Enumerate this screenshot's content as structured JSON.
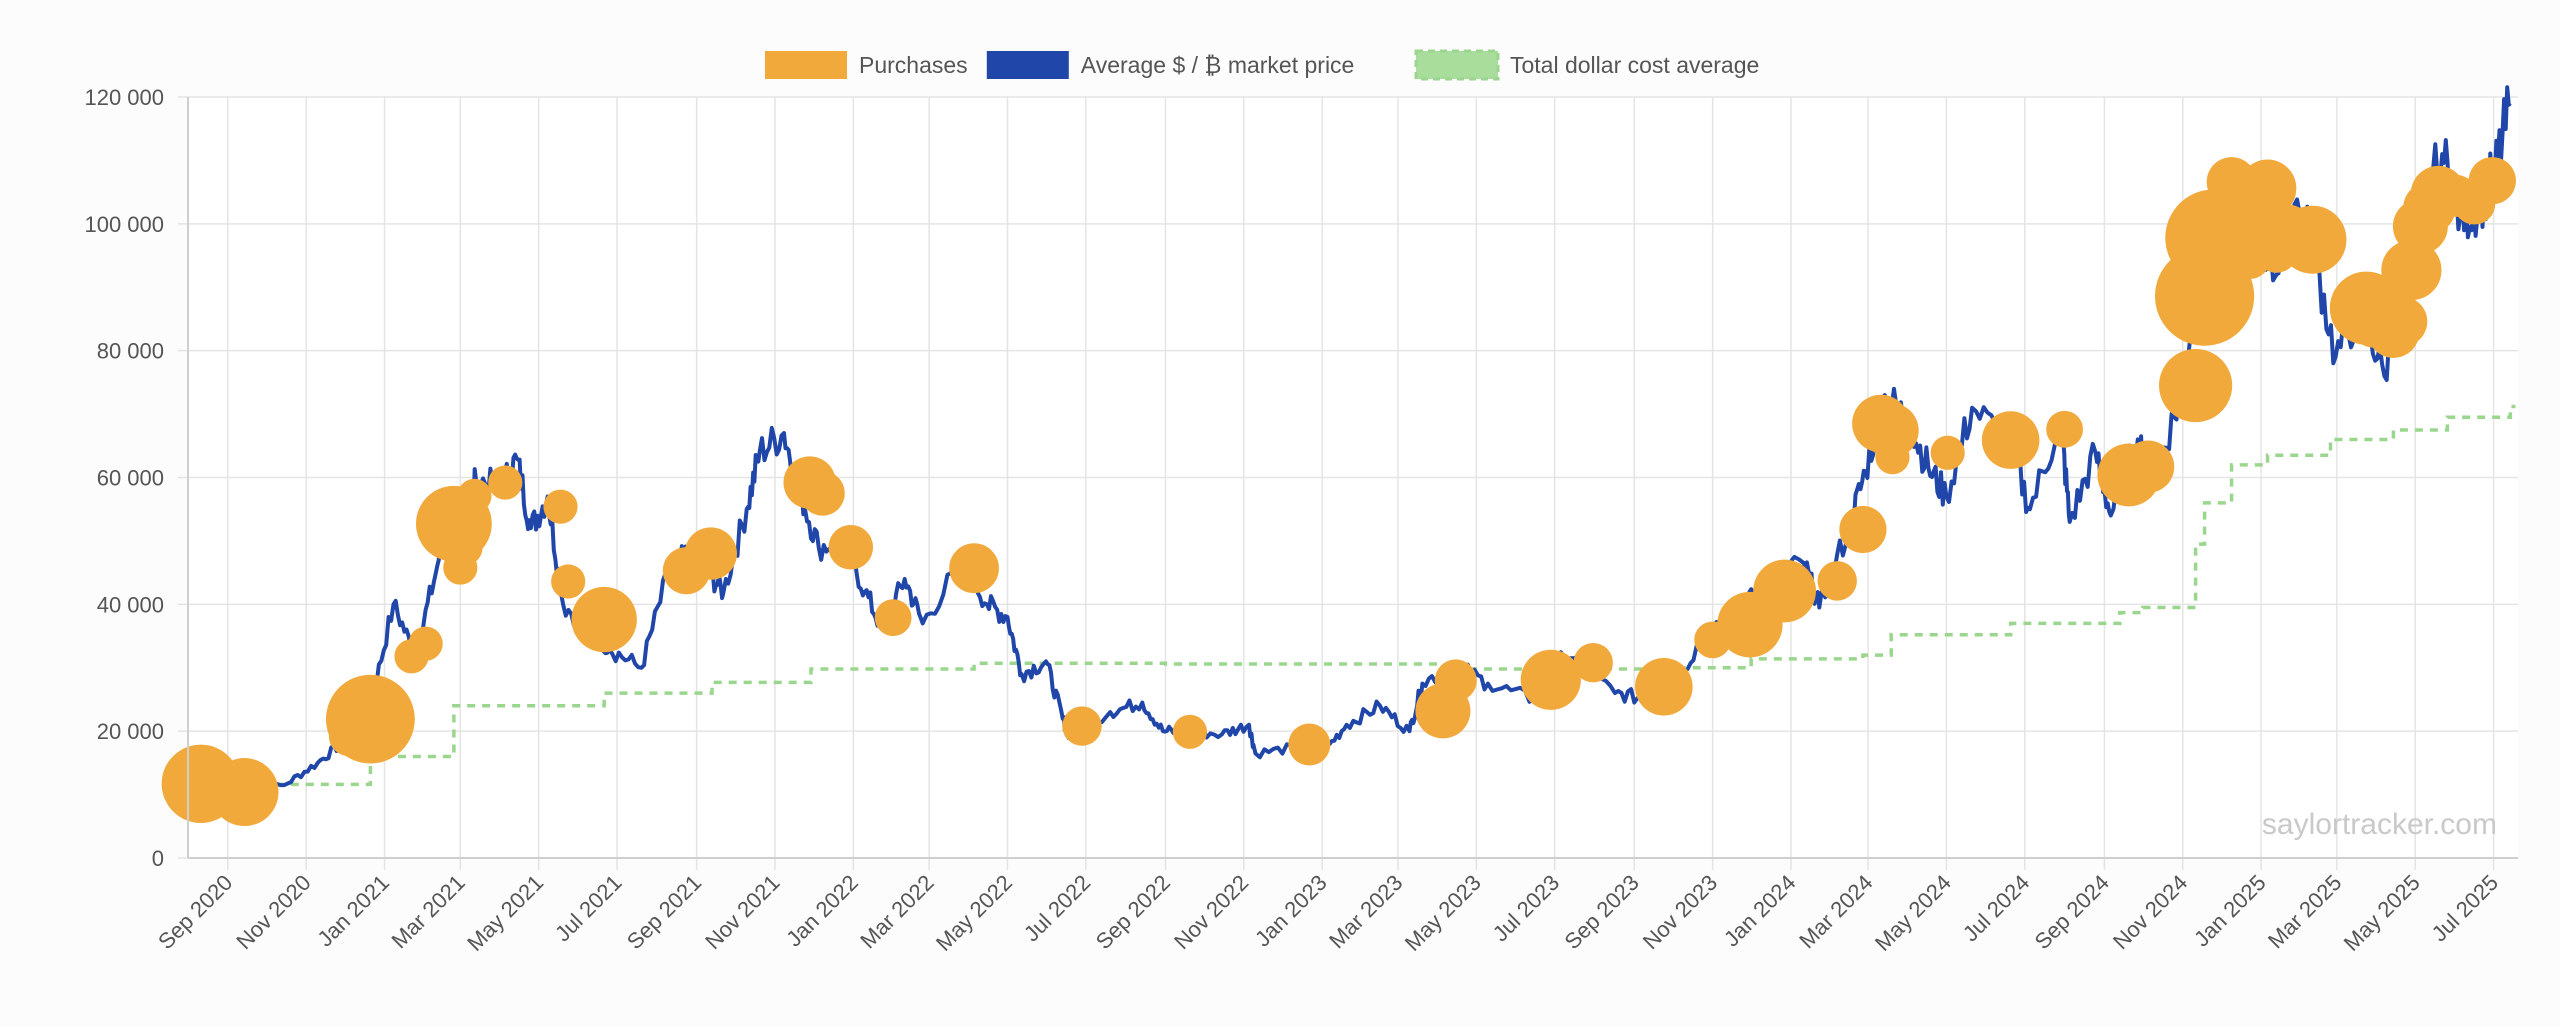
{
  "chart_data": {
    "type": "line",
    "title": "",
    "xlabel": "",
    "ylabel": "",
    "x_range": [
      "2020-08-01",
      "2025-07-20"
    ],
    "ylim": [
      0,
      120000
    ],
    "y_ticks": [
      0,
      20000,
      40000,
      60000,
      80000,
      100000,
      120000
    ],
    "y_tick_labels": [
      "0",
      "20 000",
      "40 000",
      "60 000",
      "80 000",
      "100 000",
      "120 000"
    ],
    "x_ticks": [
      "2020-09-01",
      "2020-11-01",
      "2021-01-01",
      "2021-03-01",
      "2021-05-01",
      "2021-07-01",
      "2021-09-01",
      "2021-11-01",
      "2022-01-01",
      "2022-03-01",
      "2022-05-01",
      "2022-07-01",
      "2022-09-01",
      "2022-11-01",
      "2023-01-01",
      "2023-03-01",
      "2023-05-01",
      "2023-07-01",
      "2023-09-01",
      "2023-11-01",
      "2024-01-01",
      "2024-03-01",
      "2024-05-01",
      "2024-07-01",
      "2024-09-01",
      "2024-11-01",
      "2025-01-01",
      "2025-03-01",
      "2025-05-01",
      "2025-07-01"
    ],
    "x_tick_labels": [
      "Sep 2020",
      "Nov 2020",
      "Jan 2021",
      "Mar 2021",
      "May 2021",
      "Jul 2021",
      "Sep 2021",
      "Nov 2021",
      "Jan 2022",
      "Mar 2022",
      "May 2022",
      "Jul 2022",
      "Sep 2022",
      "Nov 2022",
      "Jan 2023",
      "Mar 2023",
      "May 2023",
      "Jul 2023",
      "Sep 2023",
      "Nov 2023",
      "Jan 2024",
      "Mar 2024",
      "May 2024",
      "Jul 2024",
      "Sep 2024",
      "Nov 2024",
      "Jan 2025",
      "Mar 2025",
      "May 2025",
      "Jul 2025"
    ],
    "grid": true,
    "legend_position": "top-center",
    "legend": [
      {
        "label": "Purchases",
        "color": "#f2a93b",
        "style": "filled-box"
      },
      {
        "label": "Average $ / ₿ market price",
        "color": "#1f46a8",
        "style": "filled-box"
      },
      {
        "label": "Total dollar cost average",
        "color": "#9bd68e",
        "style": "dashed"
      }
    ],
    "watermark": "saylortracker.com",
    "series": [
      {
        "name": "Average $ / ₿ market price",
        "type": "line",
        "color": "#1f46a8",
        "points": [
          [
            "2020-09-15",
            10500
          ],
          [
            "2020-10-15",
            11500
          ],
          [
            "2020-11-10",
            15000
          ],
          [
            "2020-12-01",
            18500
          ],
          [
            "2020-12-20",
            23000
          ],
          [
            "2021-01-08",
            40000
          ],
          [
            "2021-01-25",
            32000
          ],
          [
            "2021-02-10",
            45000
          ],
          [
            "2021-02-21",
            56000
          ],
          [
            "2021-03-05",
            49000
          ],
          [
            "2021-03-13",
            60000
          ],
          [
            "2021-04-01",
            58000
          ],
          [
            "2021-04-14",
            63000
          ],
          [
            "2021-04-25",
            52000
          ],
          [
            "2021-05-08",
            57000
          ],
          [
            "2021-05-20",
            40000
          ],
          [
            "2021-06-10",
            36000
          ],
          [
            "2021-06-25",
            33000
          ],
          [
            "2021-07-20",
            30000
          ],
          [
            "2021-08-10",
            45000
          ],
          [
            "2021-08-25",
            48000
          ],
          [
            "2021-09-10",
            45000
          ],
          [
            "2021-09-22",
            42000
          ],
          [
            "2021-10-10",
            55000
          ],
          [
            "2021-10-20",
            64000
          ],
          [
            "2021-11-08",
            67000
          ],
          [
            "2021-11-20",
            58000
          ],
          [
            "2021-12-05",
            49000
          ],
          [
            "2021-12-25",
            50000
          ],
          [
            "2022-01-10",
            42000
          ],
          [
            "2022-01-24",
            36000
          ],
          [
            "2022-02-10",
            44000
          ],
          [
            "2022-02-24",
            37000
          ],
          [
            "2022-03-28",
            47000
          ],
          [
            "2022-04-15",
            40000
          ],
          [
            "2022-05-01",
            38000
          ],
          [
            "2022-05-12",
            29000
          ],
          [
            "2022-05-31",
            31000
          ],
          [
            "2022-06-13",
            22000
          ],
          [
            "2022-06-18",
            19000
          ],
          [
            "2022-07-20",
            23000
          ],
          [
            "2022-08-14",
            24500
          ],
          [
            "2022-08-30",
            20000
          ],
          [
            "2022-09-15",
            20000
          ],
          [
            "2022-10-15",
            19500
          ],
          [
            "2022-11-05",
            21000
          ],
          [
            "2022-11-10",
            16500
          ],
          [
            "2022-12-15",
            17500
          ],
          [
            "2023-01-01",
            16500
          ],
          [
            "2023-01-20",
            21000
          ],
          [
            "2023-02-15",
            24000
          ],
          [
            "2023-03-10",
            20000
          ],
          [
            "2023-03-20",
            27500
          ],
          [
            "2023-04-14",
            30500
          ],
          [
            "2023-05-10",
            27500
          ],
          [
            "2023-06-15",
            25000
          ],
          [
            "2023-06-25",
            30500
          ],
          [
            "2023-07-13",
            31500
          ],
          [
            "2023-08-17",
            26000
          ],
          [
            "2023-09-11",
            25000
          ],
          [
            "2023-10-01",
            27500
          ],
          [
            "2023-10-24",
            34500
          ],
          [
            "2023-11-15",
            37000
          ],
          [
            "2023-12-05",
            43000
          ],
          [
            "2024-01-11",
            46500
          ],
          [
            "2024-01-23",
            39500
          ],
          [
            "2024-02-15",
            52000
          ],
          [
            "2024-02-28",
            61000
          ],
          [
            "2024-03-14",
            73000
          ],
          [
            "2024-04-01",
            69000
          ],
          [
            "2024-04-17",
            61500
          ],
          [
            "2024-05-01",
            57000
          ],
          [
            "2024-05-21",
            71000
          ],
          [
            "2024-06-20",
            65000
          ],
          [
            "2024-07-05",
            55000
          ],
          [
            "2024-07-29",
            69000
          ],
          [
            "2024-08-05",
            53000
          ],
          [
            "2024-08-25",
            64000
          ],
          [
            "2024-09-06",
            54000
          ],
          [
            "2024-09-27",
            66000
          ],
          [
            "2024-10-10",
            60000
          ],
          [
            "2024-10-29",
            72000
          ],
          [
            "2024-11-12",
            89000
          ],
          [
            "2024-11-22",
            99000
          ],
          [
            "2024-12-17",
            106000
          ],
          [
            "2025-01-13",
            92000
          ],
          [
            "2025-01-21",
            106000
          ],
          [
            "2025-02-10",
            97000
          ],
          [
            "2025-02-28",
            79000
          ],
          [
            "2025-03-20",
            87000
          ],
          [
            "2025-04-07",
            76000
          ],
          [
            "2025-04-25",
            95000
          ],
          [
            "2025-05-22",
            111000
          ],
          [
            "2025-06-05",
            101000
          ],
          [
            "2025-06-20",
            103000
          ],
          [
            "2025-07-02",
            108000
          ],
          [
            "2025-07-14",
            119000
          ]
        ]
      },
      {
        "name": "Total dollar cost average",
        "type": "step-line",
        "color": "#9bd68e",
        "points": [
          [
            "2020-09-15",
            11600
          ],
          [
            "2020-12-21",
            16000
          ],
          [
            "2021-02-24",
            24000
          ],
          [
            "2021-06-21",
            26000
          ],
          [
            "2021-09-13",
            27700
          ],
          [
            "2021-11-29",
            29800
          ],
          [
            "2022-04-05",
            30700
          ],
          [
            "2022-09-01",
            30600
          ],
          [
            "2023-04-05",
            29800
          ],
          [
            "2023-09-25",
            30000
          ],
          [
            "2023-12-01",
            31400
          ],
          [
            "2024-02-26",
            32000
          ],
          [
            "2024-03-19",
            35200
          ],
          [
            "2024-06-20",
            37000
          ],
          [
            "2024-09-13",
            38700
          ],
          [
            "2024-10-01",
            39500
          ],
          [
            "2024-11-11",
            49500
          ],
          [
            "2024-11-18",
            56000
          ],
          [
            "2024-12-09",
            62000
          ],
          [
            "2025-01-06",
            63500
          ],
          [
            "2025-02-24",
            66000
          ],
          [
            "2025-04-14",
            67500
          ],
          [
            "2025-05-26",
            69500
          ],
          [
            "2025-07-14",
            71200
          ]
        ]
      },
      {
        "name": "Purchases",
        "type": "bubble",
        "color": "#f2a93b",
        "points": [
          {
            "date": "2020-08-11",
            "price": 11700,
            "size": 1.2
          },
          {
            "date": "2020-09-14",
            "price": 10400,
            "size": 1.0
          },
          {
            "date": "2020-12-04",
            "price": 19200,
            "size": 0.45
          },
          {
            "date": "2020-12-21",
            "price": 21900,
            "size": 1.4
          },
          {
            "date": "2021-01-22",
            "price": 31800,
            "size": 0.35
          },
          {
            "date": "2021-02-02",
            "price": 33800,
            "size": 0.35
          },
          {
            "date": "2021-02-24",
            "price": 52700,
            "size": 1.15
          },
          {
            "date": "2021-03-01",
            "price": 45800,
            "size": 0.35
          },
          {
            "date": "2021-03-05",
            "price": 48900,
            "size": 0.35
          },
          {
            "date": "2021-03-12",
            "price": 57100,
            "size": 0.35
          },
          {
            "date": "2021-04-05",
            "price": 59200,
            "size": 0.35
          },
          {
            "date": "2021-05-18",
            "price": 55400,
            "size": 0.35
          },
          {
            "date": "2021-05-24",
            "price": 43600,
            "size": 0.35
          },
          {
            "date": "2021-06-21",
            "price": 37600,
            "size": 0.95
          },
          {
            "date": "2021-08-24",
            "price": 45300,
            "size": 0.6
          },
          {
            "date": "2021-09-12",
            "price": 48000,
            "size": 0.7
          },
          {
            "date": "2021-11-28",
            "price": 59200,
            "size": 0.7
          },
          {
            "date": "2021-12-08",
            "price": 57500,
            "size": 0.55
          },
          {
            "date": "2021-12-30",
            "price": 49000,
            "size": 0.55
          },
          {
            "date": "2022-02-01",
            "price": 37900,
            "size": 0.4
          },
          {
            "date": "2022-04-05",
            "price": 45700,
            "size": 0.65
          },
          {
            "date": "2022-06-28",
            "price": 20800,
            "size": 0.45
          },
          {
            "date": "2022-09-20",
            "price": 19900,
            "size": 0.35
          },
          {
            "date": "2022-12-22",
            "price": 17900,
            "size": 0.5
          },
          {
            "date": "2023-04-05",
            "price": 23200,
            "size": 0.75
          },
          {
            "date": "2023-04-15",
            "price": 28000,
            "size": 0.5
          },
          {
            "date": "2023-06-28",
            "price": 28100,
            "size": 0.85
          },
          {
            "date": "2023-07-31",
            "price": 30800,
            "size": 0.45
          },
          {
            "date": "2023-09-24",
            "price": 27000,
            "size": 0.8
          },
          {
            "date": "2023-11-01",
            "price": 34400,
            "size": 0.4
          },
          {
            "date": "2023-11-30",
            "price": 36800,
            "size": 0.95
          },
          {
            "date": "2023-12-27",
            "price": 42100,
            "size": 0.9
          },
          {
            "date": "2024-02-06",
            "price": 43700,
            "size": 0.45
          },
          {
            "date": "2024-02-26",
            "price": 51800,
            "size": 0.6
          },
          {
            "date": "2024-03-11",
            "price": 68500,
            "size": 0.8
          },
          {
            "date": "2024-03-19",
            "price": 67400,
            "size": 0.75
          },
          {
            "date": "2024-03-20",
            "price": 63200,
            "size": 0.35
          },
          {
            "date": "2024-05-02",
            "price": 63900,
            "size": 0.35
          },
          {
            "date": "2024-06-20",
            "price": 65900,
            "size": 0.8
          },
          {
            "date": "2024-08-01",
            "price": 67600,
            "size": 0.4
          },
          {
            "date": "2024-09-20",
            "price": 60400,
            "size": 0.9
          },
          {
            "date": "2024-10-05",
            "price": 61700,
            "size": 0.7
          },
          {
            "date": "2024-11-11",
            "price": 74500,
            "size": 1.1
          },
          {
            "date": "2024-11-18",
            "price": 88600,
            "size": 1.6
          },
          {
            "date": "2024-11-25",
            "price": 97800,
            "size": 1.55
          },
          {
            "date": "2024-12-02",
            "price": 98800,
            "size": 1.0
          },
          {
            "date": "2024-12-09",
            "price": 106600,
            "size": 0.65
          },
          {
            "date": "2024-12-16",
            "price": 99000,
            "size": 0.6
          },
          {
            "date": "2024-12-23",
            "price": 94600,
            "size": 0.5
          },
          {
            "date": "2024-12-30",
            "price": 101800,
            "size": 0.95
          },
          {
            "date": "2025-01-06",
            "price": 105600,
            "size": 0.8
          },
          {
            "date": "2025-01-13",
            "price": 95600,
            "size": 0.5
          },
          {
            "date": "2025-01-21",
            "price": 98500,
            "size": 0.8
          },
          {
            "date": "2025-02-10",
            "price": 97500,
            "size": 1.0
          },
          {
            "date": "2025-03-24",
            "price": 86700,
            "size": 1.1
          },
          {
            "date": "2025-03-31",
            "price": 85000,
            "size": 0.8
          },
          {
            "date": "2025-04-14",
            "price": 83000,
            "size": 0.7
          },
          {
            "date": "2025-04-21",
            "price": 84600,
            "size": 0.65
          },
          {
            "date": "2025-04-28",
            "price": 92700,
            "size": 0.85
          },
          {
            "date": "2025-05-05",
            "price": 99600,
            "size": 0.75
          },
          {
            "date": "2025-05-12",
            "price": 102500,
            "size": 0.7
          },
          {
            "date": "2025-05-19",
            "price": 104800,
            "size": 0.75
          },
          {
            "date": "2025-06-02",
            "price": 104400,
            "size": 0.5
          },
          {
            "date": "2025-06-16",
            "price": 103200,
            "size": 0.5
          },
          {
            "date": "2025-06-30",
            "price": 106800,
            "size": 0.6
          }
        ]
      }
    ]
  }
}
